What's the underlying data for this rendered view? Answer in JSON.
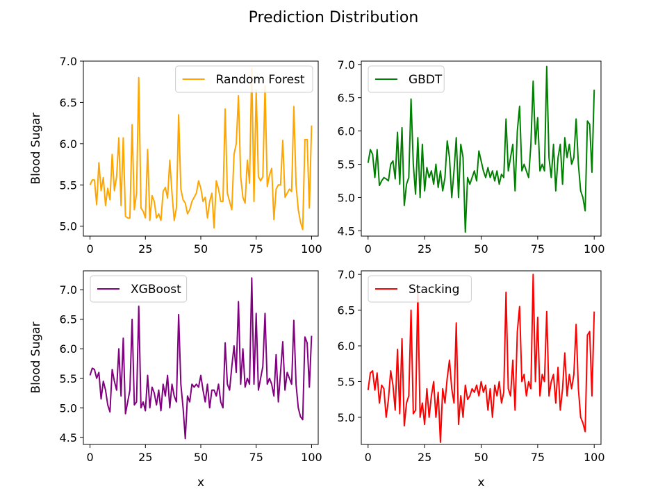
{
  "title": "Prediction Distribution",
  "colors": {
    "rf": "#ffa500",
    "gbdt": "#008000",
    "xgb": "#800080",
    "stack": "#ff0000"
  },
  "chart_data": [
    {
      "type": "line",
      "legend": "Random Forest",
      "legend_loc": "upper right",
      "color": "#ffa500",
      "xlabel": "",
      "ylabel": "Blood Sugar",
      "xlim": [
        -3,
        103
      ],
      "ylim": [
        4.88,
        7.0
      ],
      "xticks": [
        0,
        25,
        50,
        75,
        100
      ],
      "yticks": [
        5.0,
        5.5,
        6.0,
        6.5,
        7.0
      ],
      "x_start": 0,
      "y": [
        5.5,
        5.56,
        5.56,
        5.26,
        5.77,
        5.43,
        5.59,
        5.25,
        5.46,
        5.32,
        5.87,
        5.43,
        5.6,
        6.07,
        5.25,
        6.07,
        5.12,
        5.1,
        5.1,
        6.23,
        5.2,
        5.4,
        6.8,
        5.22,
        5.18,
        5.1,
        5.93,
        5.07,
        5.37,
        5.3,
        5.1,
        5.15,
        5.07,
        5.42,
        5.47,
        5.34,
        5.8,
        5.4,
        5.07,
        5.22,
        6.35,
        5.45,
        5.32,
        5.28,
        5.15,
        5.2,
        5.3,
        5.35,
        5.4,
        5.55,
        5.46,
        5.3,
        5.35,
        5.1,
        5.3,
        5.4,
        4.98,
        5.55,
        5.45,
        5.3,
        5.3,
        6.42,
        5.4,
        5.3,
        5.2,
        5.87,
        6.0,
        6.58,
        5.6,
        5.35,
        5.28,
        5.8,
        5.52,
        6.91,
        5.3,
        6.65,
        5.6,
        5.55,
        5.6,
        6.7,
        5.48,
        5.62,
        5.7,
        5.08,
        5.45,
        5.5,
        5.5,
        6.04,
        5.35,
        5.4,
        5.45,
        5.42,
        6.45,
        5.5,
        5.2,
        5.05,
        4.96,
        6.05,
        6.05,
        5.22,
        6.22
      ]
    },
    {
      "type": "line",
      "legend": "GBDT",
      "legend_loc": "upper left",
      "color": "#008000",
      "xlabel": "",
      "ylabel": "",
      "xlim": [
        -3,
        103
      ],
      "ylim": [
        4.42,
        7.05
      ],
      "xticks": [
        0,
        25,
        50,
        75,
        100
      ],
      "yticks": [
        4.5,
        5.0,
        5.5,
        6.0,
        6.5,
        7.0
      ],
      "x_start": 0,
      "y": [
        5.52,
        5.72,
        5.65,
        5.3,
        5.72,
        5.18,
        5.25,
        5.3,
        5.28,
        5.25,
        5.5,
        5.55,
        5.28,
        5.98,
        5.2,
        6.05,
        4.88,
        5.2,
        5.3,
        6.48,
        5.5,
        5.05,
        5.9,
        5.0,
        5.8,
        5.1,
        5.45,
        5.3,
        5.4,
        5.2,
        5.5,
        5.15,
        5.4,
        5.1,
        5.3,
        5.85,
        5.6,
        5.0,
        5.4,
        5.9,
        5.0,
        5.8,
        5.6,
        4.48,
        5.3,
        5.2,
        5.3,
        5.4,
        5.25,
        5.7,
        5.55,
        5.4,
        5.3,
        5.45,
        5.3,
        5.4,
        5.25,
        5.4,
        5.2,
        5.35,
        5.3,
        6.18,
        5.4,
        5.6,
        5.8,
        5.1,
        6.0,
        6.37,
        5.4,
        5.5,
        5.4,
        5.3,
        5.8,
        6.75,
        5.8,
        6.2,
        5.4,
        5.5,
        5.4,
        6.97,
        5.6,
        5.3,
        5.8,
        5.1,
        5.6,
        5.8,
        5.2,
        5.9,
        5.6,
        5.8,
        5.5,
        5.6,
        6.18,
        5.5,
        5.1,
        5.0,
        4.8,
        6.15,
        6.1,
        5.38,
        6.62
      ]
    },
    {
      "type": "line",
      "legend": "XGBoost",
      "legend_loc": "upper left",
      "color": "#800080",
      "xlabel": "x",
      "ylabel": "Blood Sugar",
      "xlim": [
        -3,
        103
      ],
      "ylim": [
        4.38,
        7.32
      ],
      "xticks": [
        0,
        25,
        50,
        75,
        100
      ],
      "yticks": [
        4.5,
        5.0,
        5.5,
        6.0,
        6.5,
        7.0
      ],
      "x_start": 0,
      "y": [
        5.55,
        5.67,
        5.65,
        5.5,
        5.6,
        5.15,
        5.45,
        5.3,
        5.05,
        4.93,
        5.65,
        5.45,
        5.3,
        6.0,
        5.2,
        6.18,
        4.9,
        5.1,
        5.3,
        6.5,
        5.05,
        5.1,
        6.72,
        5.0,
        5.1,
        4.95,
        5.55,
        5.0,
        5.35,
        5.25,
        5.05,
        5.3,
        4.95,
        5.4,
        5.2,
        5.55,
        5.0,
        5.4,
        5.2,
        5.1,
        6.58,
        5.4,
        5.0,
        4.48,
        5.2,
        5.1,
        5.4,
        5.35,
        5.4,
        5.35,
        5.55,
        5.3,
        5.1,
        5.4,
        5.0,
        5.3,
        5.3,
        5.2,
        5.4,
        5.1,
        5.0,
        6.1,
        5.4,
        5.3,
        5.7,
        6.05,
        5.6,
        6.8,
        5.4,
        6.0,
        5.35,
        5.5,
        5.4,
        7.2,
        5.4,
        6.6,
        5.3,
        5.5,
        5.7,
        6.6,
        5.4,
        5.5,
        5.4,
        5.2,
        5.9,
        5.1,
        5.6,
        6.12,
        5.3,
        5.6,
        5.5,
        5.4,
        6.48,
        5.4,
        5.0,
        4.85,
        4.8,
        6.2,
        6.1,
        5.35,
        6.22
      ]
    },
    {
      "type": "line",
      "legend": "Stacking",
      "legend_loc": "upper left",
      "color": "#ff0000",
      "xlabel": "x",
      "ylabel": "",
      "xlim": [
        -3,
        103
      ],
      "ylim": [
        4.62,
        7.05
      ],
      "xticks": [
        0,
        25,
        50,
        75,
        100
      ],
      "yticks": [
        5.0,
        5.5,
        6.0,
        6.5,
        7.0
      ],
      "x_start": 0,
      "y": [
        5.38,
        5.62,
        5.65,
        5.38,
        5.62,
        5.2,
        5.45,
        5.4,
        5.0,
        5.25,
        5.65,
        5.45,
        5.1,
        5.95,
        5.05,
        6.1,
        4.88,
        5.2,
        5.3,
        6.5,
        5.05,
        5.1,
        6.75,
        5.0,
        5.2,
        4.9,
        5.4,
        5.0,
        5.3,
        5.5,
        5.0,
        5.35,
        4.65,
        5.4,
        5.2,
        5.55,
        5.8,
        5.4,
        5.2,
        6.32,
        4.9,
        5.3,
        5.0,
        5.45,
        5.25,
        5.3,
        5.4,
        5.35,
        5.45,
        5.3,
        5.5,
        5.35,
        5.45,
        5.1,
        5.4,
        5.0,
        5.45,
        5.3,
        5.5,
        5.2,
        5.35,
        6.75,
        5.4,
        5.3,
        5.8,
        5.1,
        6.2,
        6.55,
        5.5,
        5.6,
        5.3,
        5.5,
        5.4,
        7.0,
        5.5,
        6.4,
        5.3,
        5.6,
        5.5,
        6.48,
        5.3,
        5.5,
        5.6,
        5.2,
        5.7,
        5.1,
        5.4,
        5.9,
        5.3,
        5.6,
        5.4,
        5.6,
        6.3,
        5.4,
        5.0,
        4.92,
        4.8,
        6.15,
        6.2,
        5.3,
        6.48
      ]
    }
  ]
}
